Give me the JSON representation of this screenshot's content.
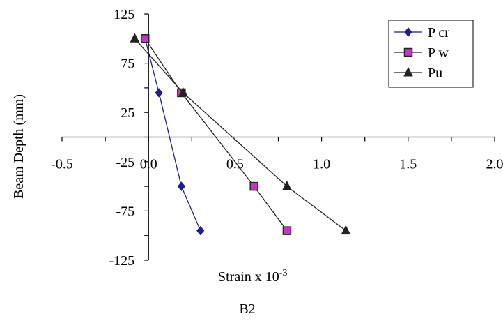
{
  "chart_data": {
    "type": "line",
    "title": "B2",
    "xlabel": "Strain x 10",
    "xlabel_superscript": "-3",
    "ylabel": "Beam Depth (mm)",
    "xlim": [
      -0.5,
      2.0
    ],
    "ylim": [
      -125,
      125
    ],
    "x_ticks": [
      "-0.5",
      "0.0",
      "0.5",
      "1.0",
      "1.5",
      "2.0"
    ],
    "x_tick_values": [
      -0.5,
      0.0,
      0.5,
      1.0,
      1.5,
      2.0
    ],
    "y_ticks": [
      "125",
      "75",
      "25",
      "-25",
      "-75",
      "-125"
    ],
    "y_tick_values": [
      125,
      75,
      25,
      -25,
      -75,
      -125
    ],
    "grid": false,
    "legend_position": "top-right",
    "series": [
      {
        "name": "P cr",
        "color": "#1f1f8f",
        "marker": "diamond",
        "x": [
          -0.02,
          0.06,
          0.19,
          0.3
        ],
        "y": [
          100,
          45,
          -50,
          -95
        ]
      },
      {
        "name": "P w",
        "color": "#222222",
        "marker_fill": "#c832c8",
        "marker": "square",
        "x": [
          -0.02,
          0.19,
          0.61,
          0.8
        ],
        "y": [
          100,
          45,
          -50,
          -95
        ]
      },
      {
        "name": "Pu",
        "color": "#222222",
        "marker": "triangle",
        "x": [
          -0.08,
          0.2,
          0.8,
          1.14
        ],
        "y": [
          100,
          45,
          -50,
          -95
        ]
      }
    ]
  }
}
